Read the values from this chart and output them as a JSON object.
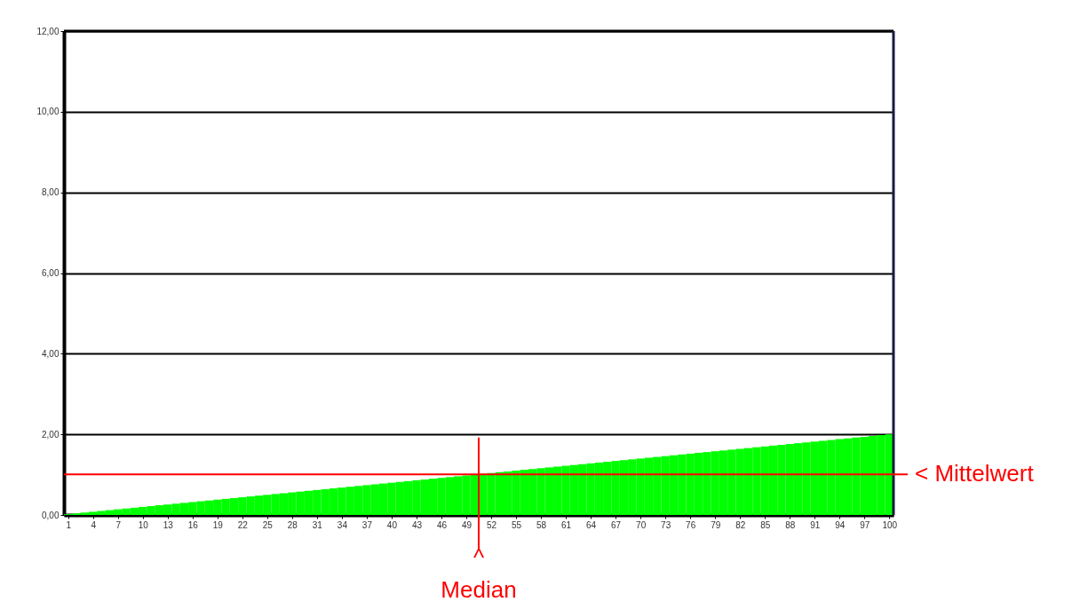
{
  "chart_data": {
    "type": "bar",
    "x": [
      1,
      2,
      3,
      4,
      5,
      6,
      7,
      8,
      9,
      10,
      11,
      12,
      13,
      14,
      15,
      16,
      17,
      18,
      19,
      20,
      21,
      22,
      23,
      24,
      25,
      26,
      27,
      28,
      29,
      30,
      31,
      32,
      33,
      34,
      35,
      36,
      37,
      38,
      39,
      40,
      41,
      42,
      43,
      44,
      45,
      46,
      47,
      48,
      49,
      50,
      51,
      52,
      53,
      54,
      55,
      56,
      57,
      58,
      59,
      60,
      61,
      62,
      63,
      64,
      65,
      66,
      67,
      68,
      69,
      70,
      71,
      72,
      73,
      74,
      75,
      76,
      77,
      78,
      79,
      80,
      81,
      82,
      83,
      84,
      85,
      86,
      87,
      88,
      89,
      90,
      91,
      92,
      93,
      94,
      95,
      96,
      97,
      98,
      99,
      100
    ],
    "series": [
      {
        "color": "#00ff00",
        "values": [
          0.02,
          0.04,
          0.06,
          0.08,
          0.1,
          0.12,
          0.14,
          0.16,
          0.18,
          0.2,
          0.22,
          0.24,
          0.26,
          0.28,
          0.3,
          0.32,
          0.34,
          0.36,
          0.38,
          0.4,
          0.42,
          0.44,
          0.46,
          0.48,
          0.5,
          0.52,
          0.54,
          0.56,
          0.58,
          0.6,
          0.62,
          0.64,
          0.66,
          0.68,
          0.7,
          0.72,
          0.74,
          0.76,
          0.78,
          0.8,
          0.82,
          0.84,
          0.86,
          0.88,
          0.9,
          0.92,
          0.94,
          0.96,
          0.98,
          1.0,
          1.02,
          1.04,
          1.06,
          1.08,
          1.1,
          1.12,
          1.14,
          1.16,
          1.18,
          1.2,
          1.22,
          1.24,
          1.26,
          1.28,
          1.3,
          1.32,
          1.34,
          1.36,
          1.38,
          1.4,
          1.42,
          1.44,
          1.46,
          1.48,
          1.5,
          1.52,
          1.54,
          1.56,
          1.58,
          1.6,
          1.62,
          1.64,
          1.66,
          1.68,
          1.7,
          1.72,
          1.74,
          1.76,
          1.78,
          1.8,
          1.82,
          1.84,
          1.86,
          1.88,
          1.9,
          1.92,
          1.94,
          1.96,
          1.98,
          2.0
        ]
      }
    ],
    "xlim": [
      0.5,
      100.5
    ],
    "xticks": [
      1,
      4,
      7,
      10,
      13,
      16,
      19,
      22,
      25,
      28,
      31,
      34,
      37,
      40,
      43,
      46,
      49,
      52,
      55,
      58,
      61,
      64,
      67,
      70,
      73,
      76,
      79,
      82,
      85,
      88,
      91,
      94,
      97,
      100
    ],
    "ylim": [
      0,
      12
    ],
    "yticks": [
      {
        "value": 0,
        "label": "0,00"
      },
      {
        "value": 2,
        "label": "2,00"
      },
      {
        "value": 4,
        "label": "4,00"
      },
      {
        "value": 6,
        "label": "6,00"
      },
      {
        "value": 8,
        "label": "8,00"
      },
      {
        "value": 10,
        "label": "10,00"
      },
      {
        "value": 12,
        "label": "12,00"
      }
    ],
    "grid": "y",
    "ref_lines": [
      {
        "axis": "y",
        "value": 1.01,
        "label": "< Mittelwert",
        "color": "#ff0000"
      },
      {
        "axis": "x",
        "value": 50.5,
        "label": "^\nMedian",
        "color": "#ff0000"
      }
    ]
  }
}
